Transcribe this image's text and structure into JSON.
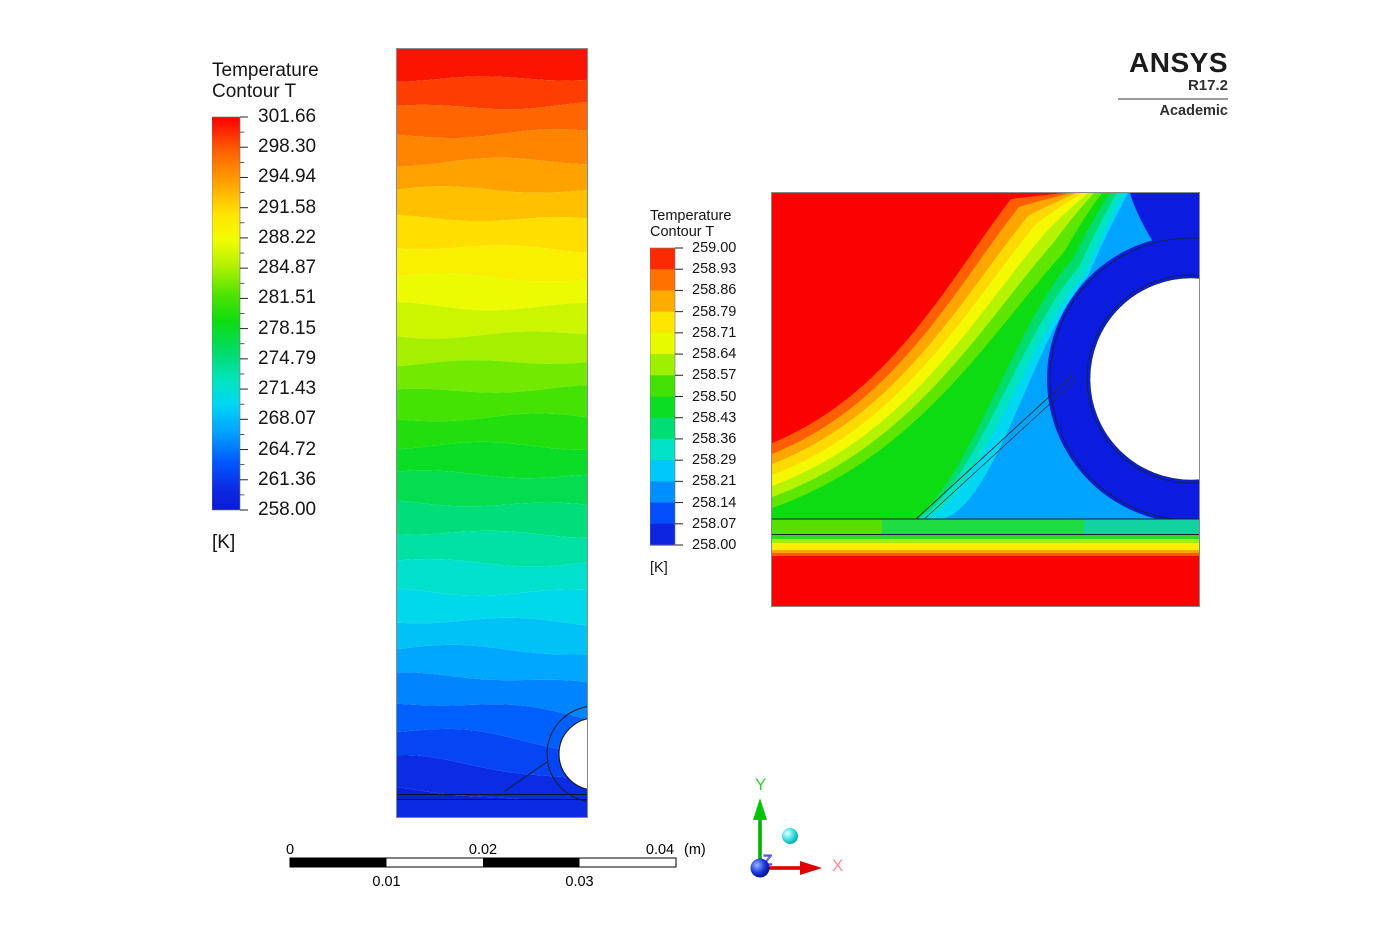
{
  "app": {
    "background": "#ffffff",
    "description": "ANSYS post-processing viewport with two temperature contour plots"
  },
  "logo": {
    "brand": "ANSYS",
    "release": "R17.2",
    "edition": "Academic"
  },
  "left_legend": {
    "title_line1": "Temperature",
    "title_line2": "Contour T",
    "unit": "[K]",
    "labels": [
      "301.66",
      "298.30",
      "294.94",
      "291.58",
      "288.22",
      "284.87",
      "281.51",
      "278.15",
      "274.79",
      "271.43",
      "268.07",
      "264.72",
      "261.36",
      "258.00"
    ]
  },
  "right_legend": {
    "title_line1": "Temperature",
    "title_line2": "Contour T",
    "unit": "[K]",
    "labels": [
      "259.00",
      "258.93",
      "258.86",
      "258.79",
      "258.71",
      "258.64",
      "258.57",
      "258.50",
      "258.43",
      "258.36",
      "258.29",
      "258.21",
      "258.14",
      "258.07",
      "258.00"
    ]
  },
  "scale_bar": {
    "top_labels": [
      "0",
      "0.02",
      "0.04"
    ],
    "unit": "(m)",
    "bottom_labels": [
      "0.01",
      "0.03"
    ]
  },
  "triad": {
    "x_label": "X",
    "y_label": "Y",
    "z_label": "Z",
    "x_color": "#ff9090",
    "y_color": "#33cc33",
    "z_color": "#3a3ae0"
  },
  "colormap": {
    "stops": [
      [
        0,
        "#fa0000"
      ],
      [
        0.085,
        "#ff5f00"
      ],
      [
        0.17,
        "#ffa500"
      ],
      [
        0.25,
        "#ffe600"
      ],
      [
        0.31,
        "#f2fc00"
      ],
      [
        0.38,
        "#b0f200"
      ],
      [
        0.45,
        "#52e400"
      ],
      [
        0.52,
        "#0edc12"
      ],
      [
        0.6,
        "#00dc6e"
      ],
      [
        0.67,
        "#00e3c0"
      ],
      [
        0.73,
        "#00d7f2"
      ],
      [
        0.8,
        "#00a4ff"
      ],
      [
        0.88,
        "#0057ff"
      ],
      [
        0.95,
        "#0d28e2"
      ],
      [
        1,
        "#0a1cd4"
      ]
    ]
  },
  "key_colors": {
    "far_field_red": "#fb0100",
    "ring_blue": "#0b1ce0",
    "hole": "#ffffff",
    "strip_left_green": "#55e000",
    "strip_mid_green": "#1edc42",
    "strip_right_teal": "#12d2a2"
  },
  "chart_data": [
    {
      "type": "heatmap",
      "subtype": "filled-contour",
      "name": "full-domain-temperature-contour",
      "title": "Temperature Contour T",
      "unit": "K",
      "legend_levels": [
        301.66,
        298.3,
        294.94,
        291.58,
        288.22,
        284.87,
        281.51,
        278.15,
        274.79,
        271.43,
        268.07,
        264.72,
        261.36,
        258.0
      ],
      "range_min": 258.0,
      "range_max": 301.66,
      "legend_position": "left",
      "description": "Tall rectangular domain; nearly horizontal wavy isotherm bands; hot (~301.66 K, red) at top grading through orange, yellow, green, cyan to cold (258 K, blue) at bottom; circular hole with fitting ring and diagonal gusset near bottom-right edge; thin double plate lines near bottom."
    },
    {
      "type": "heatmap",
      "subtype": "filled-contour",
      "name": "zoomed-hole-temperature-contour",
      "title": "Temperature Contour T",
      "unit": "K",
      "legend_levels": [
        259.0,
        258.93,
        258.86,
        258.79,
        258.71,
        258.64,
        258.57,
        258.5,
        258.43,
        258.36,
        258.29,
        258.21,
        258.14,
        258.07,
        258.0
      ],
      "range_min": 258.0,
      "range_max": 259.0,
      "legend_position": "left",
      "description": "Zoomed view around the circular hole: red far field (>=259 K) over most of the area, rainbow isotherm band sweeping diagonally from lower-left and wrapping over the hole, dark-blue annulus (258 K) around the white hole, cyan wedge between diagonal gusset and bottom plate, layered green/yellow/red strips along the bottom plate."
    }
  ],
  "scale_mapping": {
    "min_m": 0,
    "max_m": 0.04,
    "interval_m": 0.01
  }
}
